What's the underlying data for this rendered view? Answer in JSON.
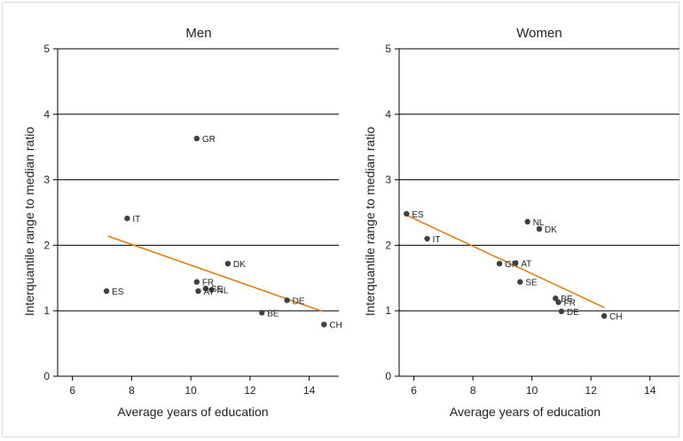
{
  "chart_data": [
    {
      "type": "scatter",
      "title": "Men",
      "xlabel": "Average years of education",
      "ylabel": "Interquantile range to median ratio",
      "xlim": [
        5.5,
        15
      ],
      "ylim": [
        0,
        5
      ],
      "xticks": [
        6,
        8,
        10,
        12,
        14
      ],
      "yticks": [
        0,
        1,
        2,
        3,
        4,
        5
      ],
      "grid": "horizontal",
      "trendline_color": "#E07B00",
      "point_color": "#404040",
      "points": [
        {
          "label": "GR",
          "x": 10.2,
          "y": 3.63
        },
        {
          "label": "IT",
          "x": 7.85,
          "y": 2.41
        },
        {
          "label": "DK",
          "x": 11.25,
          "y": 1.72
        },
        {
          "label": "FR",
          "x": 10.2,
          "y": 1.44
        },
        {
          "label": "SE",
          "x": 10.5,
          "y": 1.34
        },
        {
          "label": "NL",
          "x": 10.7,
          "y": 1.32
        },
        {
          "label": "AT",
          "x": 10.25,
          "y": 1.3
        },
        {
          "label": "ES",
          "x": 7.15,
          "y": 1.3
        },
        {
          "label": "DE",
          "x": 13.25,
          "y": 1.16
        },
        {
          "label": "BE",
          "x": 12.4,
          "y": 0.97
        },
        {
          "label": "CH",
          "x": 14.5,
          "y": 0.79
        }
      ],
      "trendline": {
        "x": [
          7.2,
          14.45
        ],
        "y": [
          2.14,
          0.99
        ]
      }
    },
    {
      "type": "scatter",
      "title": "Women",
      "xlabel": "Average years of education",
      "ylabel": "Interquantile range to median ratio",
      "xlim": [
        5.5,
        15
      ],
      "ylim": [
        0,
        5
      ],
      "xticks": [
        6,
        8,
        10,
        12,
        14
      ],
      "yticks": [
        0,
        1,
        2,
        3,
        4,
        5
      ],
      "grid": "horizontal",
      "trendline_color": "#E07B00",
      "point_color": "#404040",
      "points": [
        {
          "label": "ES",
          "x": 5.75,
          "y": 2.48
        },
        {
          "label": "IT",
          "x": 6.45,
          "y": 2.1
        },
        {
          "label": "NL",
          "x": 9.85,
          "y": 2.36
        },
        {
          "label": "DK",
          "x": 10.25,
          "y": 2.25
        },
        {
          "label": "GR",
          "x": 8.9,
          "y": 1.72
        },
        {
          "label": "AT",
          "x": 9.45,
          "y": 1.73
        },
        {
          "label": "SE",
          "x": 9.6,
          "y": 1.44
        },
        {
          "label": "BE",
          "x": 10.8,
          "y": 1.19
        },
        {
          "label": "FR",
          "x": 10.9,
          "y": 1.13
        },
        {
          "label": "DE",
          "x": 11.0,
          "y": 0.99
        },
        {
          "label": "CH",
          "x": 12.45,
          "y": 0.92
        }
      ],
      "trendline": {
        "x": [
          5.7,
          12.45
        ],
        "y": [
          2.47,
          1.05
        ]
      }
    }
  ]
}
